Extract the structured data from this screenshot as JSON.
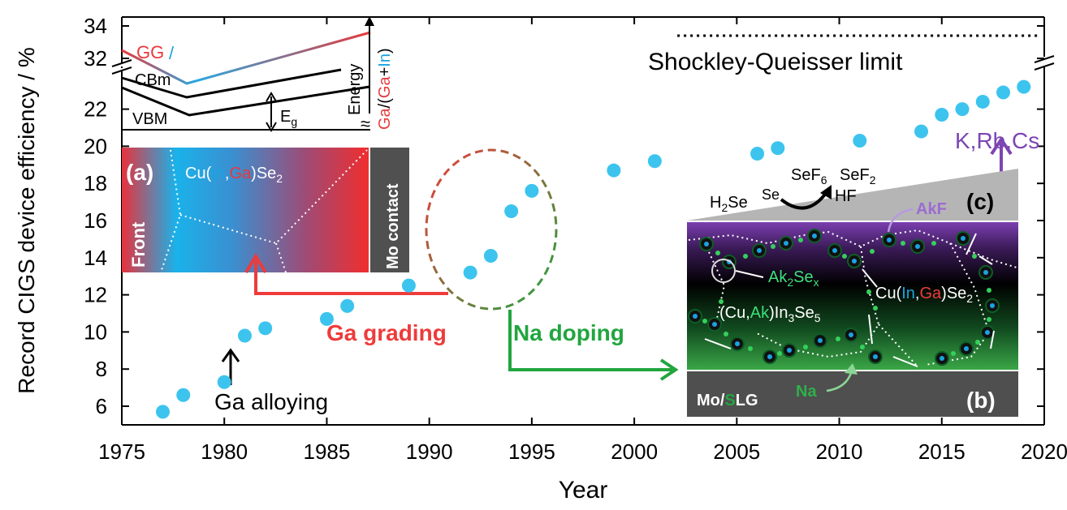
{
  "chart_data": {
    "type": "scatter",
    "title": "",
    "xlabel": "Year",
    "ylabel": "Record CIGS device efficiency / %",
    "xlim": [
      1975,
      2020
    ],
    "x_ticks": [
      "1975",
      "1980",
      "1985",
      "1990",
      "1995",
      "2000",
      "2005",
      "2010",
      "2015",
      "2020"
    ],
    "y_ticks_lower": [
      "6",
      "8",
      "10",
      "12",
      "14",
      "16",
      "18",
      "20",
      "22"
    ],
    "y_ticks_upper": [
      "32",
      "34"
    ],
    "ylim_lower": [
      5,
      23.8
    ],
    "ylim_upper": [
      31,
      35
    ],
    "axis_break": true,
    "series": [
      {
        "color": "#3cc4ee",
        "x": [
          1977.0,
          1978.0,
          1980.0,
          1981.0,
          1982.0,
          1985.0,
          1986.0,
          1989.0,
          1992.0,
          1993.0,
          1994.0,
          1995.0,
          1999.0,
          2001.0,
          2006.0,
          2007.0,
          2011.0,
          2014.0,
          2015.0,
          2016.0,
          2017.0,
          2018.0,
          2019.0
        ],
        "y": [
          5.7,
          6.6,
          7.3,
          9.8,
          10.2,
          10.7,
          11.4,
          12.5,
          13.2,
          14.1,
          16.5,
          17.6,
          18.7,
          19.2,
          19.6,
          19.9,
          20.3,
          20.8,
          21.7,
          22.0,
          22.4,
          22.9,
          23.2
        ]
      }
    ],
    "reference_lines": [
      {
        "label": "Shockley-Queisser limit",
        "y": 33.4,
        "x_start": 2002.1,
        "style": "dotted"
      }
    ],
    "annotations": {
      "ga_alloying": "Ga alloying",
      "ga_grading": "Ga grading",
      "na_doping": "Na doping",
      "k_rb_cs": "K,Rb,Cs"
    }
  },
  "inset_a": {
    "label": "(a)",
    "gg_text": "GG",
    "gg_slash": "/",
    "cbm": "CBm",
    "vbm": "VBM",
    "eg": "E",
    "eg_sub": "g",
    "energy": "Energy",
    "break_mark": "≈",
    "ratio_ga": "Ga",
    "ratio_slash": "/(",
    "ratio_ga2": "Ga",
    "ratio_plus": "+",
    "ratio_in": "In",
    "ratio_close": ")",
    "front": "Front",
    "mo_contact": "Mo contact",
    "material_pre": "Cu(",
    "material_in": "In",
    "material_comma": ",",
    "material_ga": "Ga",
    "material_se": ")Se",
    "material_sub": "2"
  },
  "inset_bc": {
    "label_b": "(b)",
    "label_c": "(c)",
    "h2se": "H",
    "h2se_sub": "2",
    "h2se_end": "Se",
    "se": "Se",
    "sef6": "SeF",
    "sef6_sub": "6",
    "sef2": "SeF",
    "sef2_sub": "2",
    "hf": "HF",
    "akf": "AkF",
    "ak2sex": "Ak",
    "ak2sex_sub1": "2",
    "ak2sex_mid": "Se",
    "ak2sex_sub2": "x",
    "cuak_pre": "(Cu,",
    "cuak_ak": "Ak",
    "cuak_mid": ")In",
    "cuak_sub1": "3",
    "cuak_se": "Se",
    "cuak_sub2": "5",
    "cigs_pre": "Cu(",
    "cigs_in": "In",
    "cigs_comma": ",",
    "cigs_ga": "Ga",
    "cigs_se": ")Se",
    "cigs_sub": "2",
    "na": "Na",
    "mo": "Mo/",
    "mo_s": "S",
    "mo_lg": "LG"
  },
  "colors": {
    "marker": "#3cc4ee",
    "ga_red": "#ee3b3b",
    "na_green": "#22a53f",
    "alkali_purple": "#7d45b3",
    "in_blue": "#1aa3e0",
    "dark_gray": "#505050"
  }
}
